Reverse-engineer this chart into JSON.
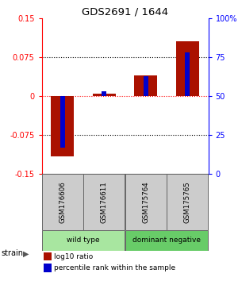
{
  "title": "GDS2691 / 1644",
  "samples": [
    "GSM176606",
    "GSM176611",
    "GSM175764",
    "GSM175765"
  ],
  "log10_ratio": [
    -0.115,
    0.005,
    0.04,
    0.105
  ],
  "percentile_rank": [
    17,
    53,
    63,
    78
  ],
  "groups": [
    {
      "label": "wild type",
      "color": "#a8e6a0",
      "samples": [
        0,
        1
      ]
    },
    {
      "label": "dominant negative",
      "color": "#68cc68",
      "samples": [
        2,
        3
      ]
    }
  ],
  "ylim_left": [
    -0.15,
    0.15
  ],
  "ylim_right": [
    0,
    100
  ],
  "yticks_left": [
    -0.15,
    -0.075,
    0,
    0.075,
    0.15
  ],
  "yticks_right": [
    0,
    25,
    50,
    75,
    100
  ],
  "ytick_labels_left": [
    "-0.15",
    "-0.075",
    "0",
    "0.075",
    "0.15"
  ],
  "ytick_labels_right": [
    "0",
    "25",
    "50",
    "75",
    "100%"
  ],
  "hlines_dotted": [
    -0.075,
    0.075
  ],
  "hline_red": 0,
  "bar_color_red": "#aa1100",
  "bar_color_blue": "#0000cc",
  "background_color": "#ffffff",
  "sample_box_color": "#cccccc",
  "legend_red_label": "log10 ratio",
  "legend_blue_label": "percentile rank within the sample",
  "bar_width": 0.55,
  "blue_bar_width": 0.12
}
